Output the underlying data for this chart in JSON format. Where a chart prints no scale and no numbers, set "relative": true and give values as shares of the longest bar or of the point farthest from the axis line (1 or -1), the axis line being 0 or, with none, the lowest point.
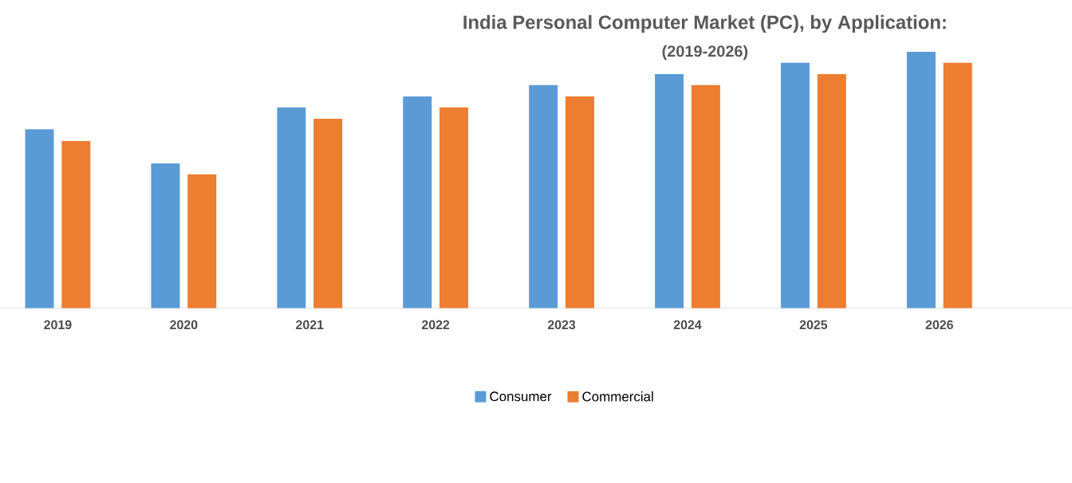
{
  "chart_data": {
    "type": "bar",
    "title": "India Personal Computer Market (PC), by Application:",
    "subtitle": "(2019-2026)",
    "categories": [
      "2019",
      "2020",
      "2021",
      "2022",
      "2023",
      "2024",
      "2025",
      "2026"
    ],
    "relative": true,
    "legend": "bottom",
    "series": [
      {
        "name": "Consumer",
        "color": "#5b9bd5",
        "values": [
          0.698,
          0.565,
          0.783,
          0.826,
          0.87,
          0.913,
          0.957,
          1
        ]
      },
      {
        "name": "Commercial",
        "color": "#ed7d31",
        "values": [
          0.652,
          0.522,
          0.739,
          0.783,
          0.826,
          0.87,
          0.913,
          0.957
        ]
      }
    ]
  }
}
